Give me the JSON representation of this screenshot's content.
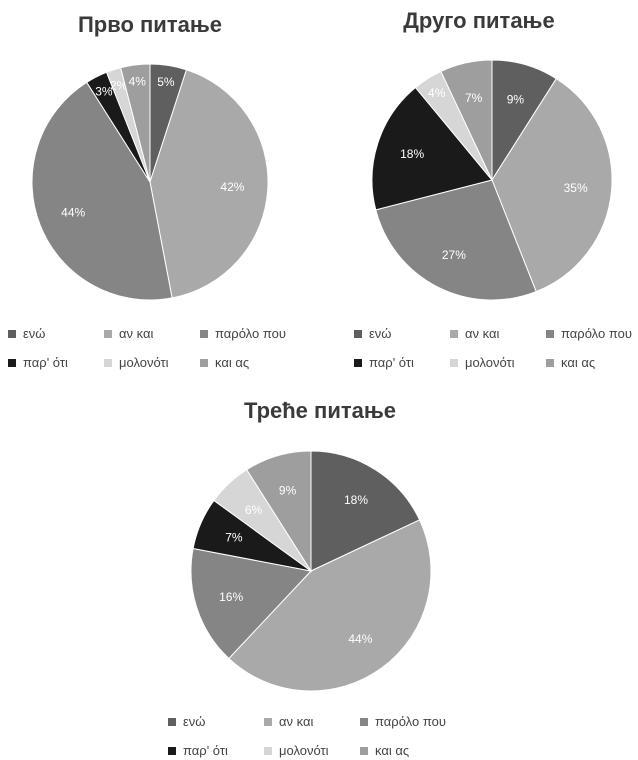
{
  "categories": [
    "ενώ",
    "αν και",
    "παρόλο που",
    "παρ' ότι",
    "μολονότι",
    "και ας"
  ],
  "colors": [
    "#5f5f5f",
    "#a9a9a9",
    "#858585",
    "#1a1a1a",
    "#d6d6d6",
    "#9e9e9e"
  ],
  "chart_data": [
    {
      "type": "pie",
      "title": "Прво питање",
      "categories": [
        "ενώ",
        "αν και",
        "παρόλο που",
        "παρ' ότι",
        "μολονότι",
        "και ας"
      ],
      "values": [
        5,
        42,
        44,
        3,
        2,
        4
      ],
      "labels": [
        "5%",
        "42%",
        "44%",
        "3%",
        "2%",
        "4%"
      ],
      "legend_position": "bottom"
    },
    {
      "type": "pie",
      "title": "Друго питање",
      "categories": [
        "ενώ",
        "αν και",
        "παρόλο που",
        "παρ' ότι",
        "μολονότι",
        "και ας"
      ],
      "values": [
        9,
        35,
        27,
        18,
        4,
        7
      ],
      "labels": [
        "9%",
        "35%",
        "27%",
        "18%",
        "4%",
        "7%"
      ],
      "legend_position": "bottom"
    },
    {
      "type": "pie",
      "title": "Треће питање",
      "categories": [
        "ενώ",
        "αν και",
        "παρόλο που",
        "παρ' ότι",
        "μολονότι",
        "και ας"
      ],
      "values": [
        18,
        44,
        16,
        7,
        6,
        9
      ],
      "labels": [
        "18%",
        "44%",
        "16%",
        "7%",
        "6%",
        "9%"
      ],
      "legend_position": "bottom"
    }
  ]
}
